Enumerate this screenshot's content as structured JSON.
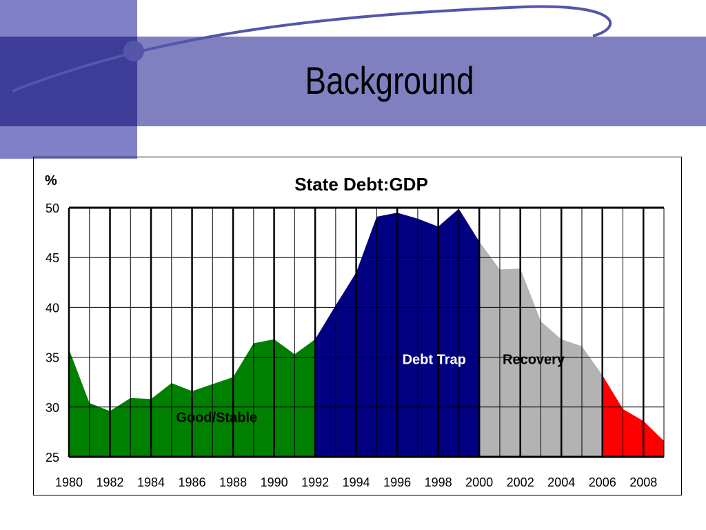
{
  "slide": {
    "title": "Background",
    "colors": {
      "band": "#8080c0",
      "square": "#8080c8",
      "dark_square": "#3d3d99",
      "swoosh": "#5555aa"
    }
  },
  "chart_data": {
    "type": "area",
    "title": "State Debt:GDP",
    "ylabel": "%",
    "xlabel": "",
    "ylim": [
      25,
      50
    ],
    "xlim": [
      1980,
      2009
    ],
    "yticks": [
      25,
      30,
      35,
      40,
      45,
      50
    ],
    "xticks": [
      "1980",
      "1982",
      "1984",
      "1986",
      "1988",
      "1990",
      "1992",
      "1994",
      "1996",
      "1998",
      "2000",
      "2002",
      "2004",
      "2006",
      "2008"
    ],
    "grid": true,
    "x": [
      1980,
      1981,
      1982,
      1983,
      1984,
      1985,
      1986,
      1987,
      1988,
      1989,
      1990,
      1991,
      1992,
      1993,
      1994,
      1995,
      1996,
      1997,
      1998,
      1999,
      2000,
      2001,
      2002,
      2003,
      2004,
      2005,
      2006,
      2007,
      2008,
      2009
    ],
    "values": [
      35.8,
      30.4,
      29.6,
      30.9,
      30.8,
      32.4,
      31.6,
      32.3,
      33.0,
      36.4,
      36.8,
      35.3,
      36.8,
      40.2,
      43.5,
      49.1,
      49.5,
      48.9,
      48.1,
      49.9,
      46.6,
      43.8,
      43.9,
      38.6,
      36.8,
      36.1,
      33.2,
      29.8,
      28.6,
      26.6
    ],
    "regions": [
      {
        "name": "Good/Stable",
        "start": 1980,
        "end": 1992,
        "color": "#008000",
        "label_color": "#000000",
        "label_x": 1987.2,
        "label_y": 28.5
      },
      {
        "name": "Debt Trap",
        "start": 1992,
        "end": 2000,
        "color": "#000080",
        "label_color": "#ffffff",
        "label_x": 1997.8,
        "label_y": 34.3
      },
      {
        "name": "Recovery",
        "start": 2000,
        "end": 2006,
        "color": "#b3b3b3",
        "label_color": "#000000",
        "label_x": 2002.65,
        "label_y": 34.3
      },
      {
        "name": "",
        "start": 2006,
        "end": 2009,
        "color": "#ff0000",
        "label_color": "#000000",
        "label_x": 2007.5,
        "label_y": 27
      }
    ]
  }
}
